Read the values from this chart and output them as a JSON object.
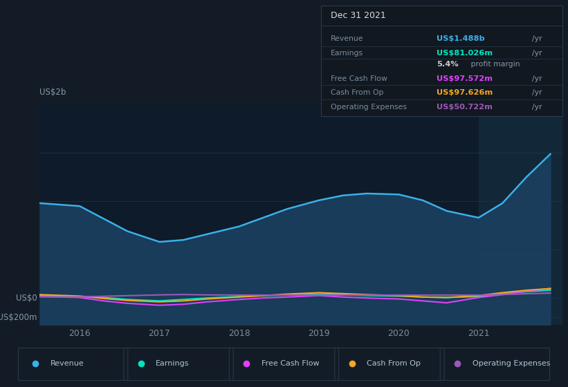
{
  "bg_color": "#131c26",
  "plot_bg_color": "#0d1b2a",
  "grid_color": "#1e3a4a",
  "title_box": {
    "title": "Dec 31 2021",
    "rows": [
      {
        "label": "Revenue",
        "value": "US$1.488b /yr",
        "value_color": "#3cb0e8"
      },
      {
        "label": "Earnings",
        "value": "US$81.026m /yr",
        "value_color": "#00e5c0"
      },
      {
        "label": "",
        "value": "5.4% profit margin",
        "value_color": "#ffffff"
      },
      {
        "label": "Free Cash Flow",
        "value": "US$97.572m /yr",
        "value_color": "#e040fb"
      },
      {
        "label": "Cash From Op",
        "value": "US$97.626m /yr",
        "value_color": "#f5a623"
      },
      {
        "label": "Operating Expenses",
        "value": "US$50.722m /yr",
        "value_color": "#9b59b6"
      }
    ]
  },
  "x_years": [
    2015.5,
    2016.0,
    2016.3,
    2016.6,
    2017.0,
    2017.3,
    2017.6,
    2018.0,
    2018.3,
    2018.6,
    2019.0,
    2019.3,
    2019.6,
    2020.0,
    2020.3,
    2020.6,
    2021.0,
    2021.3,
    2021.6,
    2021.9
  ],
  "revenue": [
    980,
    950,
    820,
    690,
    580,
    600,
    660,
    740,
    830,
    920,
    1010,
    1060,
    1080,
    1070,
    1010,
    900,
    830,
    980,
    1250,
    1488
  ],
  "earnings": [
    25,
    15,
    5,
    -15,
    -30,
    -15,
    0,
    15,
    25,
    30,
    40,
    35,
    25,
    20,
    10,
    5,
    15,
    45,
    65,
    81
  ],
  "free_cash_flow": [
    15,
    5,
    -30,
    -55,
    -75,
    -65,
    -40,
    -15,
    0,
    10,
    25,
    10,
    0,
    -10,
    -30,
    -50,
    5,
    35,
    70,
    97.5
  ],
  "cash_from_op": [
    35,
    20,
    -5,
    -25,
    -40,
    -30,
    -10,
    10,
    25,
    40,
    55,
    45,
    35,
    25,
    10,
    5,
    25,
    55,
    80,
    97.6
  ],
  "operating_expenses": [
    12,
    12,
    18,
    24,
    32,
    36,
    32,
    30,
    30,
    30,
    30,
    30,
    30,
    30,
    30,
    30,
    30,
    36,
    44,
    50.7
  ],
  "revenue_color": "#3cb0e8",
  "earnings_color": "#00e5c0",
  "free_cash_flow_color": "#e040fb",
  "cash_from_op_color": "#f5a623",
  "operating_expenses_color": "#9b59b6",
  "fill_alpha": 0.7,
  "ylabel_top": "US$2b",
  "ylabel_zero": "US$0",
  "ylabel_bottom": "-US$200m",
  "ylim": [
    -280,
    2000
  ],
  "xlim": [
    2015.5,
    2022.05
  ],
  "xticks": [
    2016,
    2017,
    2018,
    2019,
    2020,
    2021
  ],
  "legend_items": [
    {
      "label": "Revenue",
      "color": "#3cb0e8"
    },
    {
      "label": "Earnings",
      "color": "#00e5c0"
    },
    {
      "label": "Free Cash Flow",
      "color": "#e040fb"
    },
    {
      "label": "Cash From Op",
      "color": "#f5a623"
    },
    {
      "label": "Operating Expenses",
      "color": "#9b59b6"
    }
  ]
}
